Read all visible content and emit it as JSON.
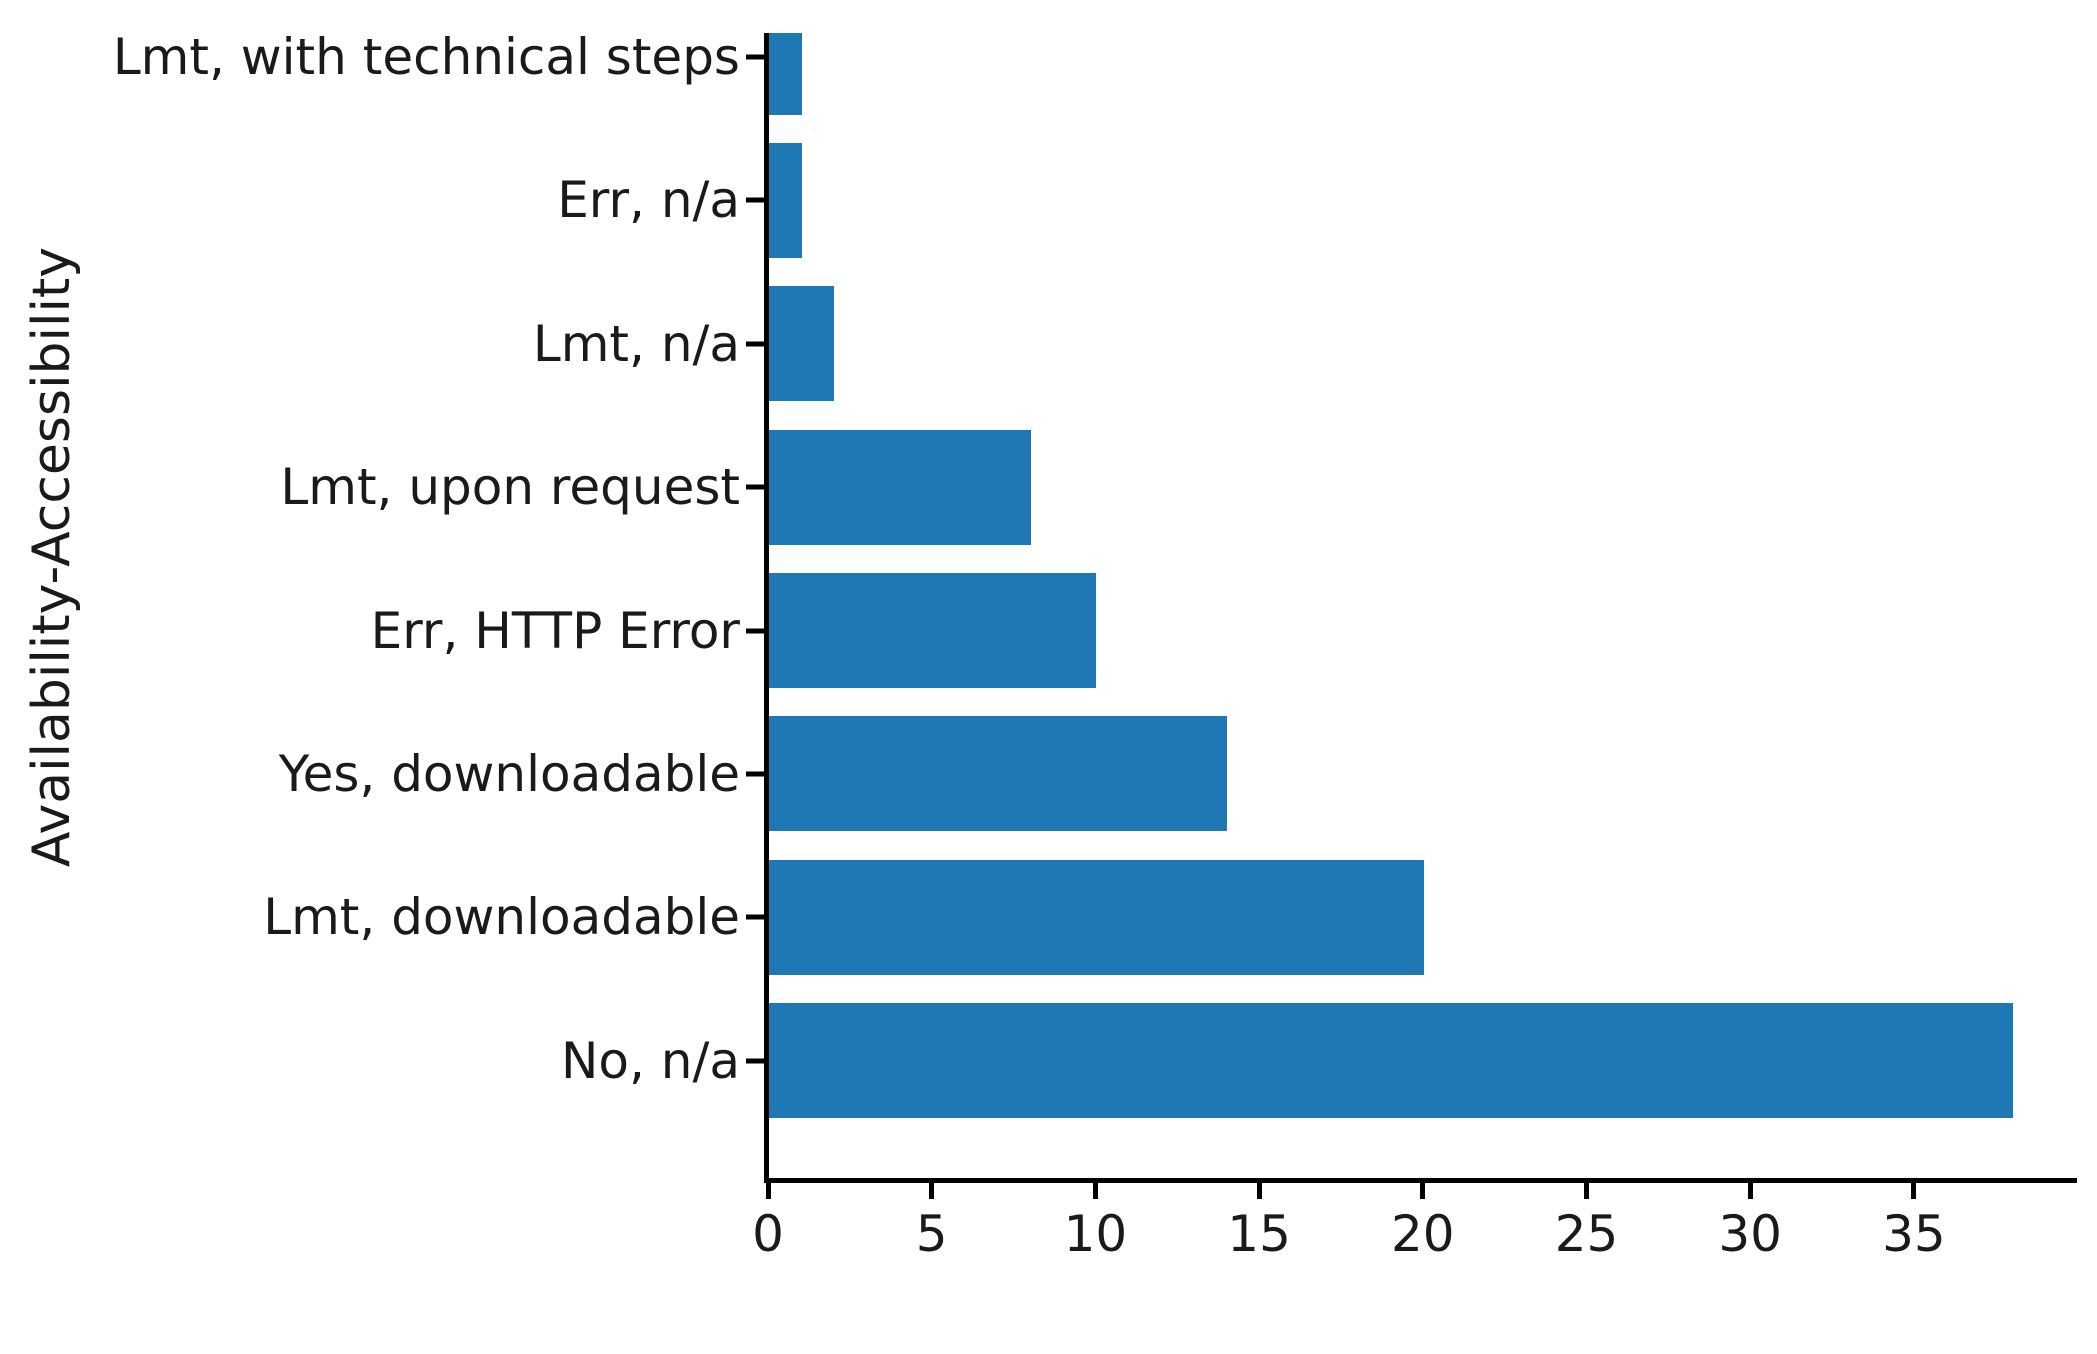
{
  "chart_data": {
    "type": "bar",
    "orientation": "horizontal",
    "title": "",
    "xlabel": "",
    "ylabel": "Availability-Accessibility",
    "categories": [
      "Lmt, with technical steps",
      "Err, n/a",
      "Lmt, n/a",
      "Lmt, upon request",
      "Err, HTTP Error",
      "Yes, downloadable",
      "Lmt, downloadable",
      "No, n/a"
    ],
    "values": [
      1,
      1,
      2,
      8,
      10,
      14,
      20,
      38
    ],
    "x_ticks": [
      0,
      5,
      10,
      15,
      20,
      25,
      30,
      35
    ],
    "xlim": [
      0,
      40
    ],
    "grid": false,
    "legend": false,
    "bar_color": "#1f77b4",
    "axis_color": "#000000"
  }
}
